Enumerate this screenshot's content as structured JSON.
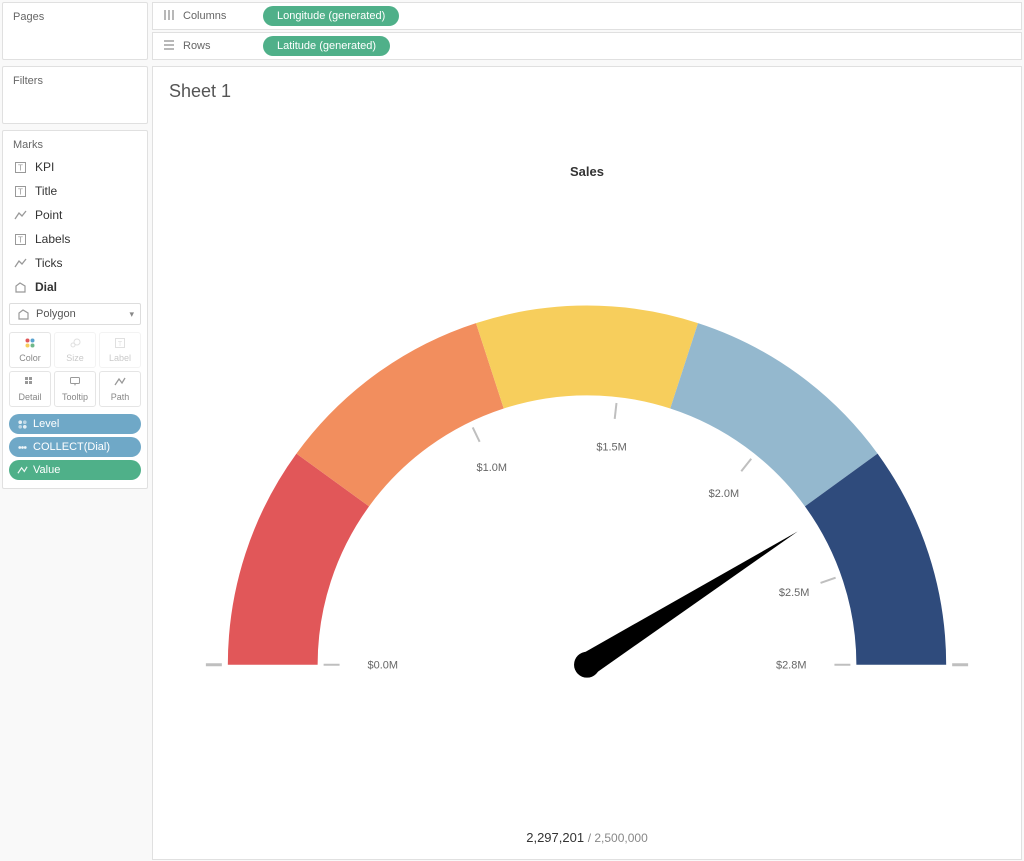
{
  "sidebar": {
    "pages_label": "Pages",
    "filters_label": "Filters",
    "marks_label": "Marks",
    "layers": [
      {
        "label": "KPI",
        "icon": "text",
        "active": false
      },
      {
        "label": "Title",
        "icon": "text",
        "active": false
      },
      {
        "label": "Point",
        "icon": "line",
        "active": false
      },
      {
        "label": "Labels",
        "icon": "text",
        "active": false
      },
      {
        "label": "Ticks",
        "icon": "line",
        "active": false
      },
      {
        "label": "Dial",
        "icon": "poly",
        "active": true
      }
    ],
    "mark_type": "Polygon",
    "mark_type_icon": "poly",
    "properties": [
      {
        "label": "Color",
        "icon": "color",
        "enabled": true
      },
      {
        "label": "Size",
        "icon": "size",
        "enabled": false
      },
      {
        "label": "Label",
        "icon": "label",
        "enabled": false
      },
      {
        "label": "Detail",
        "icon": "detail",
        "enabled": true
      },
      {
        "label": "Tooltip",
        "icon": "tooltip",
        "enabled": true
      },
      {
        "label": "Path",
        "icon": "path",
        "enabled": true
      }
    ],
    "pills": [
      {
        "label": "Level",
        "color": "blue",
        "icon": "color"
      },
      {
        "label": "COLLECT(Dial)",
        "color": "blue",
        "icon": "detail"
      },
      {
        "label": "Value",
        "color": "green",
        "icon": "path"
      }
    ]
  },
  "shelves": {
    "columns_label": "Columns",
    "rows_label": "Rows",
    "columns_pill": "Longitude (generated)",
    "rows_pill": "Latitude (generated)"
  },
  "sheet": {
    "title": "Sheet 1"
  },
  "gauge": {
    "type": "gauge",
    "title": "Sales",
    "min": 0,
    "max": 2800000,
    "value": 2297201,
    "target": 2500000,
    "value_formatted": "2,297,201",
    "target_formatted": "2,500,000",
    "start_angle_deg": 180,
    "end_angle_deg": 0,
    "outer_radius": 360,
    "inner_radius": 270,
    "segments": [
      {
        "from": 0,
        "to": 560000,
        "color": "#e15759"
      },
      {
        "from": 560000,
        "to": 1120000,
        "color": "#f28e5e"
      },
      {
        "from": 1120000,
        "to": 1680000,
        "color": "#f7ce5c"
      },
      {
        "from": 1680000,
        "to": 2240000,
        "color": "#94b8ce"
      },
      {
        "from": 2240000,
        "to": 2800000,
        "color": "#2f4b7c"
      }
    ],
    "ticks": [
      {
        "value": 0,
        "label": "$0.0M"
      },
      {
        "value": 1000000,
        "label": "$1.0M"
      },
      {
        "value": 1500000,
        "label": "$1.5M"
      },
      {
        "value": 2000000,
        "label": "$2.0M"
      },
      {
        "value": 2500000,
        "label": "$2.5M"
      },
      {
        "value": 2800000,
        "label": "$2.8M"
      }
    ],
    "tick_length": 16,
    "tick_color": "#bfbfbf",
    "needle_color": "#000000",
    "background_color": "#ffffff",
    "title_fontsize": 13,
    "label_fontsize": 11,
    "label_color": "#666666",
    "end_stub_color": "#bfbfbf"
  }
}
